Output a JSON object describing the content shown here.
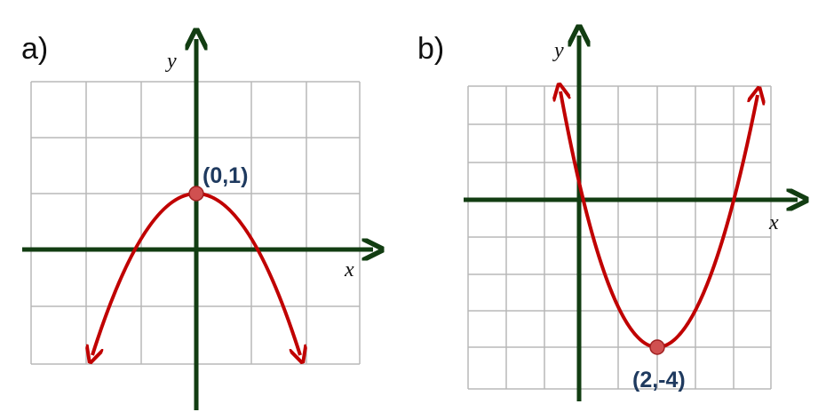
{
  "panels": [
    {
      "label": "a)",
      "y_label": "y",
      "x_label": "x",
      "point_label": "(0,1)"
    },
    {
      "label": "b)",
      "y_label": "y",
      "x_label": "x",
      "point_label": "(2,-4)"
    }
  ]
}
